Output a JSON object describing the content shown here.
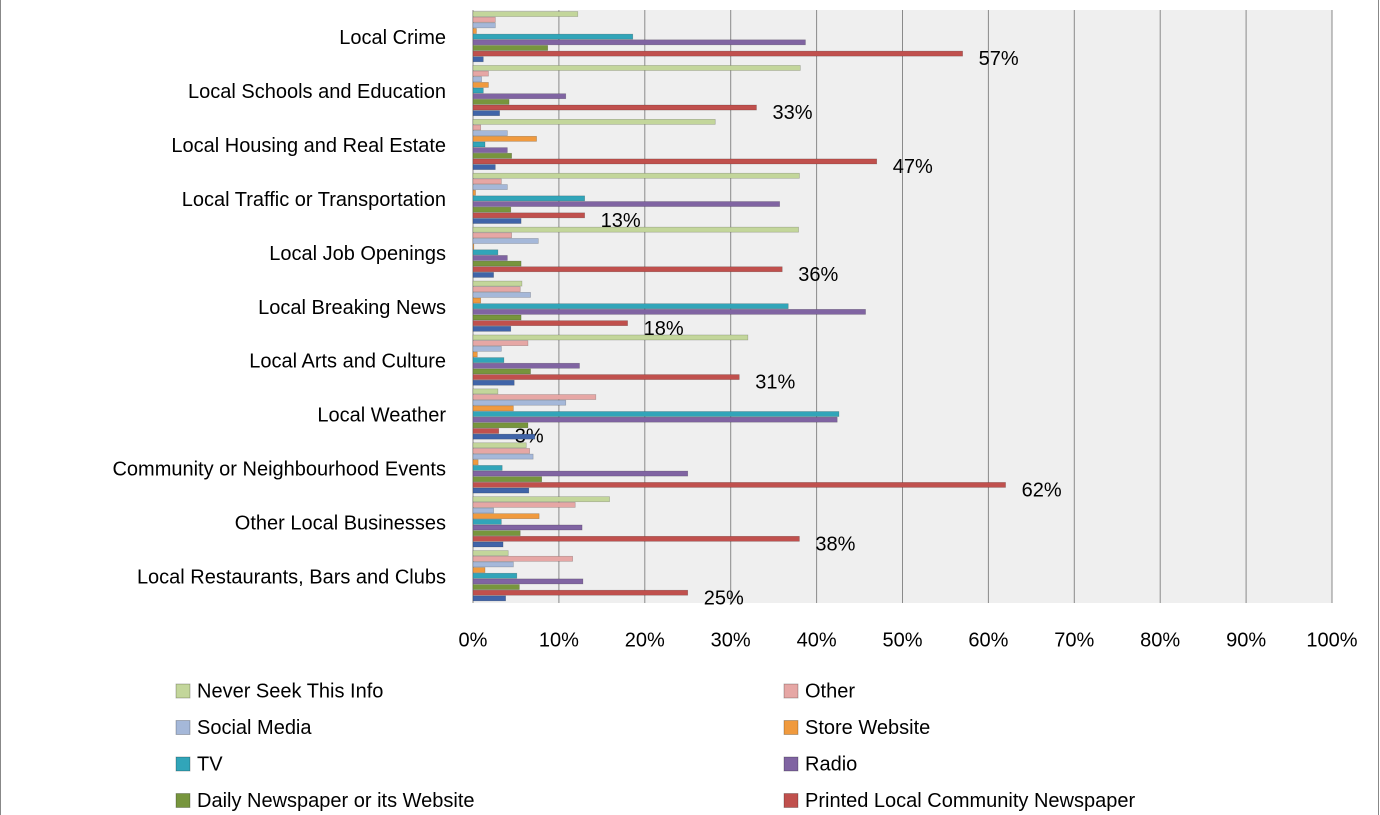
{
  "chart_data": {
    "type": "bar",
    "orientation": "horizontal",
    "categories": [
      "Local Crime",
      "Local Schools and Education",
      "Local Housing and Real Estate",
      "Local Traffic or Transportation",
      "Local Job Openings",
      "Local Breaking News",
      "Local Arts and Culture",
      "Local Weather",
      "Community or Neighbourhood Events",
      "Other Local Businesses",
      "Local Restaurants, Bars and Clubs"
    ],
    "series": [
      {
        "name": "Never Seek This Info",
        "color": "#c3d69b",
        "values": [
          12.2,
          38.1,
          28.2,
          38.0,
          37.9,
          5.7,
          32.0,
          2.9,
          6.2,
          15.9,
          4.1
        ]
      },
      {
        "name": "Other",
        "color": "#e6a7a5",
        "values": [
          2.6,
          1.8,
          0.9,
          3.3,
          4.5,
          5.5,
          6.4,
          14.3,
          6.6,
          11.9,
          11.6
        ]
      },
      {
        "name": "Social Media",
        "color": "#a5b8d9",
        "values": [
          2.6,
          1.0,
          4.0,
          4.0,
          7.6,
          6.7,
          3.3,
          10.8,
          7.0,
          2.4,
          4.7
        ]
      },
      {
        "name": "Store Website",
        "color": "#f09a3e",
        "values": [
          0.4,
          1.8,
          7.4,
          0.3,
          0.1,
          0.9,
          0.5,
          4.7,
          0.6,
          7.7,
          1.4
        ]
      },
      {
        "name": "TV",
        "color": "#31a5b9",
        "values": [
          18.6,
          1.2,
          1.4,
          13.0,
          2.9,
          36.7,
          3.6,
          42.6,
          3.4,
          3.3,
          5.1
        ]
      },
      {
        "name": "Radio",
        "color": "#8064a2",
        "values": [
          38.7,
          10.8,
          4.0,
          35.7,
          4.0,
          45.7,
          12.4,
          42.4,
          25.0,
          12.7,
          12.8
        ]
      },
      {
        "name": "Daily Newspaper or its Website",
        "color": "#77953d",
        "values": [
          8.7,
          4.2,
          4.5,
          4.4,
          5.6,
          5.6,
          6.7,
          6.4,
          8.0,
          5.5,
          5.4
        ]
      },
      {
        "name": "Printed Local Community Newspaper",
        "color": "#c0504d",
        "values": [
          57,
          33,
          47,
          13,
          36,
          18,
          31,
          3,
          62,
          38,
          25
        ],
        "value_labels": [
          "57%",
          "33%",
          "47%",
          "13%",
          "36%",
          "18%",
          "31%",
          "3%",
          "62%",
          "38%",
          "25%"
        ]
      },
      {
        "color": "#4064a8",
        "values": [
          1.2,
          3.1,
          2.6,
          5.6,
          2.4,
          4.4,
          4.8,
          7.2,
          6.5,
          3.5,
          3.8
        ]
      }
    ],
    "xlim": [
      0,
      100
    ],
    "xticks": [
      {
        "value": 0,
        "label": "0%"
      },
      {
        "value": 10,
        "label": "10%"
      },
      {
        "value": 20,
        "label": "20%"
      },
      {
        "value": 30,
        "label": "30%"
      },
      {
        "value": 40,
        "label": "40%"
      },
      {
        "value": 50,
        "label": "50%"
      },
      {
        "value": 60,
        "label": "60%"
      },
      {
        "value": 70,
        "label": "70%"
      },
      {
        "value": 80,
        "label": "80%"
      },
      {
        "value": 90,
        "label": "90%"
      },
      {
        "value": 100,
        "label": "100%"
      }
    ],
    "grid": true,
    "legend": "bottom"
  }
}
